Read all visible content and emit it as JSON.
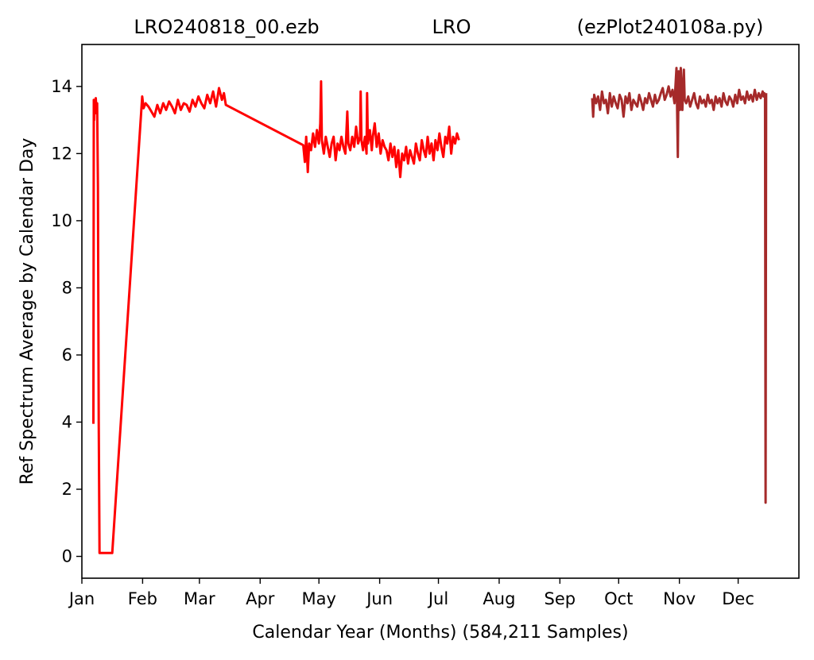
{
  "chart_data": {
    "type": "line",
    "title": {
      "left": "LRO240818_00.ezb",
      "center": "LRO",
      "right": "(ezPlot240108a.py)"
    },
    "xlabel": "Calendar Year (Months) (584,211 Samples)",
    "ylabel": "Ref Spectrum Average by Calendar Day",
    "x_units": "day of year",
    "xlim": [
      0,
      366
    ],
    "ylim": [
      -0.65,
      15.25
    ],
    "xticks": [
      {
        "label": "Jan",
        "value": 0
      },
      {
        "label": "Feb",
        "value": 31
      },
      {
        "label": "Mar",
        "value": 60
      },
      {
        "label": "Apr",
        "value": 91
      },
      {
        "label": "May",
        "value": 121
      },
      {
        "label": "Jun",
        "value": 152
      },
      {
        "label": "Jul",
        "value": 182
      },
      {
        "label": "Aug",
        "value": 213
      },
      {
        "label": "Sep",
        "value": 244
      },
      {
        "label": "Oct",
        "value": 274
      },
      {
        "label": "Nov",
        "value": 305
      },
      {
        "label": "Dec",
        "value": 335
      }
    ],
    "yticks": [
      {
        "label": "0",
        "value": 0
      },
      {
        "label": "2",
        "value": 2
      },
      {
        "label": "4",
        "value": 4
      },
      {
        "label": "6",
        "value": 6
      },
      {
        "label": "8",
        "value": 8
      },
      {
        "label": "10",
        "value": 10
      },
      {
        "label": "12",
        "value": 12
      },
      {
        "label": "14",
        "value": 14
      }
    ],
    "grid": false,
    "legend": "none",
    "series": [
      {
        "color": "#ff0000",
        "x": [
          5.9,
          6.1,
          6.3,
          6.5,
          6.8,
          7.1,
          7.4,
          7.8,
          8.2,
          8.6,
          9.0,
          11.2,
          15.5,
          30.8,
          31.5,
          32.5,
          34.0,
          35.5,
          37.0,
          38.5,
          40.0,
          41.5,
          43.0,
          44.5,
          46.0,
          47.5,
          49.0,
          50.5,
          52.0,
          53.5,
          55.0,
          56.5,
          58.0,
          59.5,
          61.0,
          62.5,
          64.0,
          65.5,
          67.0,
          68.5,
          70.0,
          71.5,
          72.5,
          73.5,
          113.0,
          113.8,
          114.5,
          115.3,
          116.0,
          117.0,
          118.0,
          119.0,
          120.0,
          121.0,
          121.7,
          122.1,
          122.5,
          123.5,
          124.5,
          125.5,
          126.5,
          127.5,
          128.5,
          129.5,
          130.5,
          131.5,
          132.5,
          133.5,
          134.5,
          135.0,
          135.5,
          136.0,
          137.0,
          138.0,
          139.0,
          140.0,
          141.0,
          142.0,
          142.3,
          142.7,
          143.5,
          144.5,
          145.3,
          145.6,
          146.0,
          147.0,
          148.0,
          148.5,
          149.5,
          150.5,
          151.5,
          152.5,
          153.5,
          154.5,
          155.5,
          156.5,
          157.5,
          158.5,
          159.5,
          160.5,
          161.5,
          162.5,
          163.5,
          164.5,
          165.5,
          166.5,
          167.5,
          168.5,
          169.5,
          170.5,
          171.5,
          172.5,
          173.5,
          174.5,
          175.5,
          176.5,
          177.5,
          178.5,
          179.5,
          180.5,
          181.5,
          182.5,
          183.5,
          184.5,
          185.5,
          186.5,
          187.5,
          188.5,
          189.5,
          190.5,
          191.5,
          192.5
        ],
        "y": [
          3.95,
          13.6,
          13.0,
          13.6,
          13.2,
          13.65,
          13.3,
          13.5,
          11.0,
          4.0,
          0.1,
          0.1,
          0.1,
          13.7,
          13.35,
          13.5,
          13.4,
          13.25,
          13.1,
          13.45,
          13.2,
          13.5,
          13.3,
          13.55,
          13.4,
          13.2,
          13.6,
          13.3,
          13.5,
          13.45,
          13.25,
          13.6,
          13.4,
          13.7,
          13.5,
          13.35,
          13.75,
          13.5,
          13.85,
          13.4,
          13.95,
          13.6,
          13.8,
          13.45,
          12.25,
          11.75,
          12.5,
          11.45,
          12.3,
          12.1,
          12.6,
          12.2,
          12.7,
          12.3,
          12.9,
          14.15,
          12.4,
          12.0,
          12.5,
          12.2,
          11.9,
          12.3,
          12.5,
          11.8,
          12.3,
          12.1,
          12.5,
          12.2,
          12.0,
          12.6,
          13.25,
          12.3,
          12.1,
          12.5,
          12.2,
          12.8,
          12.3,
          12.5,
          13.85,
          12.4,
          12.1,
          12.5,
          12.0,
          13.8,
          12.3,
          12.7,
          12.1,
          12.5,
          12.9,
          12.2,
          12.6,
          12.0,
          12.4,
          12.2,
          12.1,
          11.8,
          12.3,
          11.9,
          12.2,
          11.6,
          12.1,
          11.3,
          12.0,
          11.8,
          12.2,
          11.7,
          12.1,
          11.9,
          11.7,
          12.3,
          12.0,
          11.8,
          12.4,
          12.1,
          11.9,
          12.5,
          12.0,
          12.3,
          11.8,
          12.4,
          12.1,
          12.6,
          12.2,
          11.9,
          12.5,
          12.3,
          12.8,
          12.0,
          12.5,
          12.3,
          12.6,
          12.4
        ],
        "markers": false
      },
      {
        "color": "#a52a2a",
        "x": [
          260.5,
          261.0,
          261.5,
          262.5,
          263.5,
          264.5,
          265.5,
          266.5,
          267.5,
          268.5,
          269.5,
          270.5,
          271.5,
          272.5,
          273.5,
          274.5,
          275.5,
          276.5,
          277.5,
          278.5,
          279.5,
          280.5,
          281.5,
          282.5,
          283.5,
          284.5,
          285.5,
          286.5,
          287.5,
          288.5,
          289.5,
          290.5,
          291.5,
          292.5,
          293.5,
          294.5,
          295.5,
          296.5,
          297.5,
          298.5,
          299.5,
          300.5,
          301.5,
          302.5,
          303.5,
          304.2,
          304.6,
          305.0,
          305.3,
          305.7,
          306.5,
          307.3,
          307.7,
          308.5,
          309.5,
          310.5,
          311.5,
          312.5,
          313.5,
          314.5,
          315.5,
          316.5,
          317.5,
          318.5,
          319.5,
          320.5,
          321.5,
          322.5,
          323.5,
          324.5,
          325.5,
          326.5,
          327.5,
          328.5,
          329.5,
          330.5,
          331.5,
          332.5,
          333.5,
          334.5,
          335.5,
          336.5,
          337.5,
          338.5,
          339.5,
          340.5,
          341.5,
          342.5,
          343.5,
          344.5,
          345.5,
          346.5,
          347.5,
          348.0,
          348.3,
          348.7,
          349.0,
          349.3
        ],
        "y": [
          13.65,
          13.1,
          13.75,
          13.5,
          13.7,
          13.3,
          13.85,
          13.5,
          13.6,
          13.2,
          13.8,
          13.4,
          13.7,
          13.5,
          13.35,
          13.75,
          13.6,
          13.1,
          13.7,
          13.5,
          13.8,
          13.3,
          13.6,
          13.5,
          13.4,
          13.75,
          13.55,
          13.3,
          13.65,
          13.5,
          13.8,
          13.6,
          13.4,
          13.75,
          13.5,
          13.6,
          13.8,
          13.95,
          13.6,
          13.75,
          14.0,
          13.7,
          13.9,
          13.5,
          14.55,
          11.9,
          14.45,
          13.6,
          13.3,
          14.55,
          13.3,
          14.5,
          13.6,
          13.5,
          13.7,
          13.4,
          13.6,
          13.8,
          13.5,
          13.35,
          13.7,
          13.5,
          13.6,
          13.4,
          13.75,
          13.5,
          13.6,
          13.3,
          13.7,
          13.5,
          13.65,
          13.4,
          13.8,
          13.55,
          13.45,
          13.7,
          13.6,
          13.4,
          13.75,
          13.5,
          13.9,
          13.6,
          13.7,
          13.5,
          13.85,
          13.6,
          13.75,
          13.55,
          13.9,
          13.6,
          13.8,
          13.65,
          13.85,
          13.7,
          13.8,
          13.75,
          1.6,
          13.8
        ],
        "markers": false
      }
    ]
  }
}
